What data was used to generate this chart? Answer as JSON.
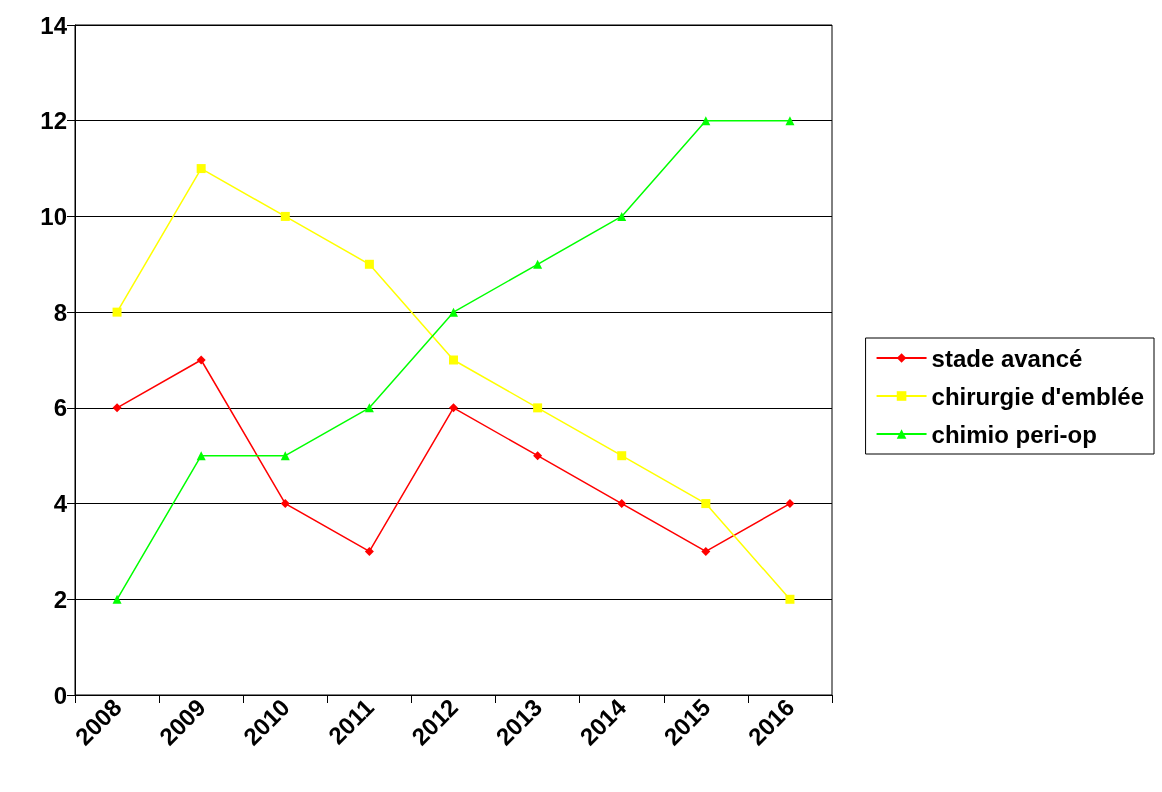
{
  "chart_data": {
    "type": "line",
    "categories": [
      "2008",
      "2009",
      "2010",
      "2011",
      "2012",
      "2013",
      "2014",
      "2015",
      "2016"
    ],
    "series": [
      {
        "name": "stade avancé",
        "color": "#ff0000",
        "marker": "diamond",
        "values": [
          6,
          7,
          4,
          3,
          6,
          5,
          4,
          3,
          4
        ]
      },
      {
        "name": "chirurgie d'emblée",
        "color": "#ffff00",
        "marker": "square",
        "values": [
          8,
          11,
          10,
          9,
          7,
          6,
          5,
          4,
          2
        ]
      },
      {
        "name": "chimio peri-op",
        "color": "#00ff00",
        "marker": "triangle",
        "values": [
          2,
          5,
          5,
          6,
          8,
          9,
          10,
          12,
          12
        ]
      }
    ],
    "ylim": [
      0,
      14
    ],
    "yticks": [
      0,
      2,
      4,
      6,
      8,
      10,
      12,
      14
    ],
    "grid": "y",
    "legend": "right",
    "line_style": "solid"
  }
}
